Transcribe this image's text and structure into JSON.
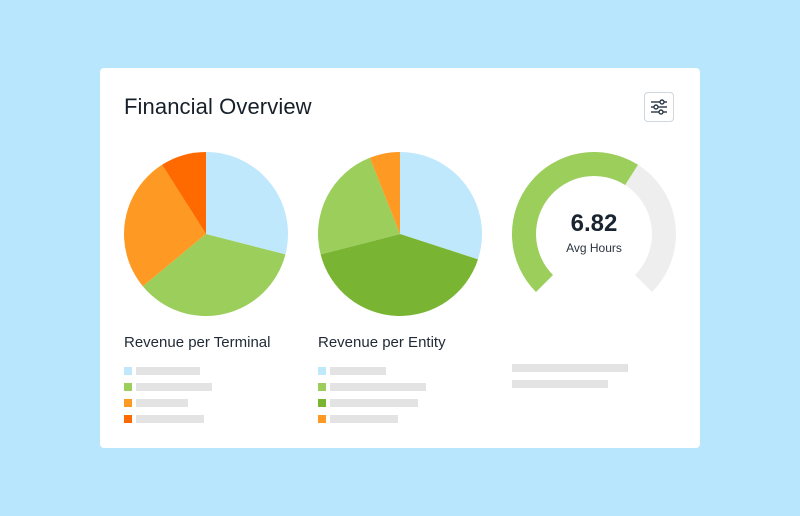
{
  "header": {
    "title": "Financial Overview",
    "settings_icon": "sliders-icon"
  },
  "colors": {
    "light_blue": "#bfe8fd",
    "light_green": "#9bce5a",
    "green": "#7ab433",
    "light_orange": "#fe9a23",
    "orange": "#fe6a00",
    "placeholder": "#e3e3e3",
    "gauge_track": "#eeeeee"
  },
  "chart_data": [
    {
      "type": "pie",
      "title": "Revenue per Terminal",
      "series": [
        {
          "color": "#bfe8fd",
          "value": 29
        },
        {
          "color": "#9bce5a",
          "value": 35
        },
        {
          "color": "#fe9a23",
          "value": 27
        },
        {
          "color": "#fe6a00",
          "value": 9
        }
      ]
    },
    {
      "type": "pie",
      "title": "Revenue per Entity",
      "series": [
        {
          "color": "#bfe8fd",
          "value": 30
        },
        {
          "color": "#7ab433",
          "value": 41
        },
        {
          "color": "#9bce5a",
          "value": 23
        },
        {
          "color": "#fe9a23",
          "value": 6
        }
      ]
    },
    {
      "type": "gauge",
      "value": "6.82",
      "label": "Avg Hours",
      "fill_fraction": 0.62,
      "fill_color": "#9bce5a"
    }
  ],
  "legends": [
    [
      {
        "color": "#bfe8fd"
      },
      {
        "color": "#9bce5a"
      },
      {
        "color": "#fe9a23"
      },
      {
        "color": "#fe6a00"
      }
    ],
    [
      {
        "color": "#bfe8fd"
      },
      {
        "color": "#9bce5a"
      },
      {
        "color": "#7ab433"
      },
      {
        "color": "#fe9a23"
      }
    ]
  ]
}
